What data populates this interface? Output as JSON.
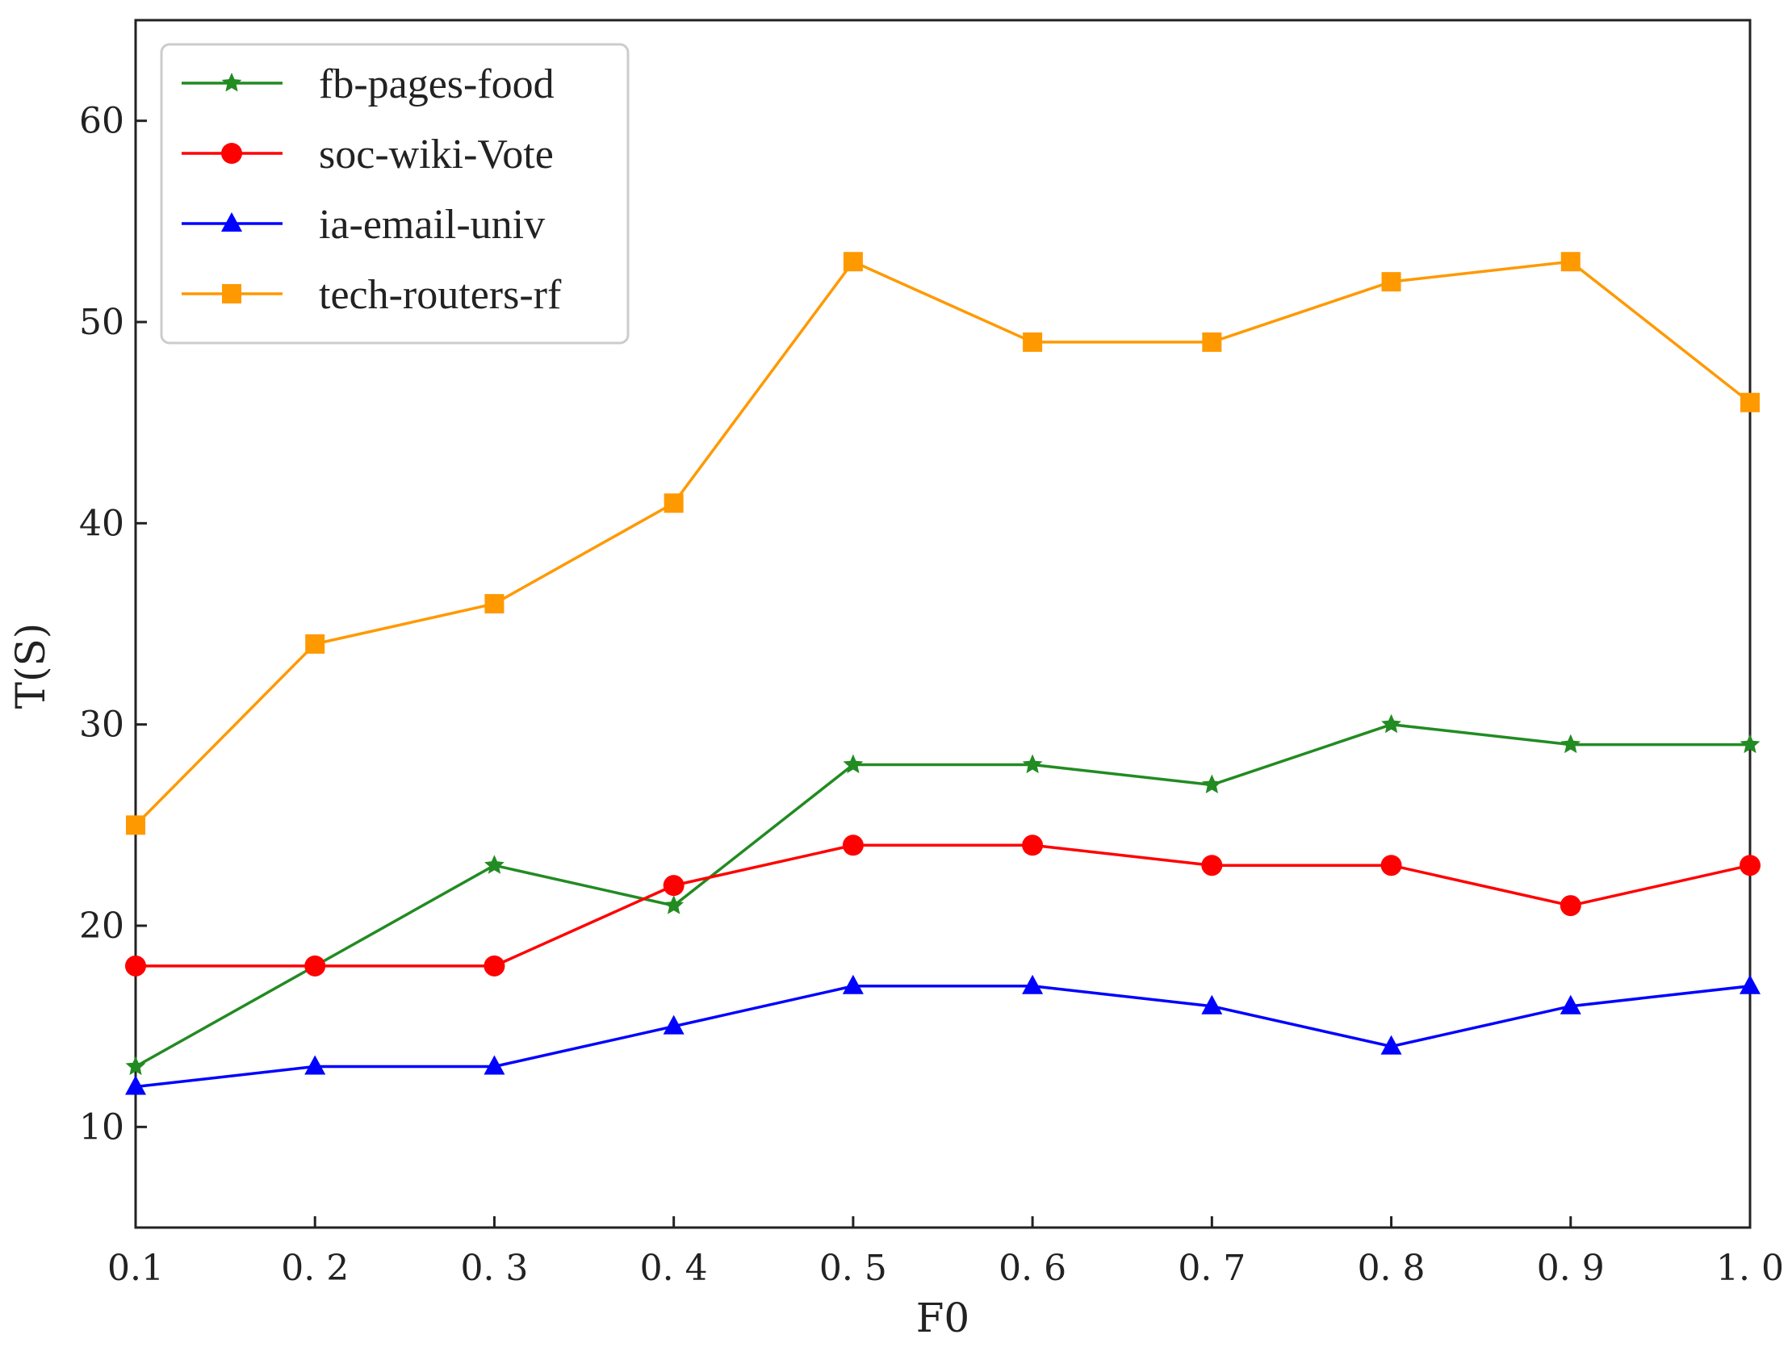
{
  "chart_data": {
    "type": "line",
    "title": "",
    "xlabel": "F0",
    "ylabel": "T(S)",
    "x": [
      0.1,
      0.2,
      0.3,
      0.4,
      0.5,
      0.6,
      0.7,
      0.8,
      0.9,
      1.0
    ],
    "x_tick_labels": [
      "0.1",
      "0. 2",
      "0. 3",
      "0. 4",
      "0. 5",
      "0. 6",
      "0. 7",
      "0. 8",
      "0. 9",
      "1. 0"
    ],
    "y_ticks": [
      10,
      20,
      30,
      40,
      50,
      60
    ],
    "y_tick_labels": [
      "10",
      "20",
      "30",
      "40",
      "50",
      "60"
    ],
    "xlim": [
      0.1,
      1.0
    ],
    "ylim": [
      5,
      65
    ],
    "grid": false,
    "legend_position": "top-left",
    "series": [
      {
        "name": "fb-pages-food",
        "color": "#228B22",
        "marker": "star",
        "values": [
          13,
          18,
          23,
          21,
          28,
          28,
          27,
          30,
          29,
          29
        ]
      },
      {
        "name": "soc-wiki-Vote",
        "color": "#FF0000",
        "marker": "circle",
        "values": [
          18,
          18,
          18,
          22,
          24,
          24,
          23,
          23,
          21,
          23
        ]
      },
      {
        "name": "ia-email-univ",
        "color": "#0000FF",
        "marker": "triangle",
        "values": [
          12,
          13,
          13,
          15,
          17,
          17,
          16,
          14,
          16,
          17
        ]
      },
      {
        "name": "tech-routers-rf",
        "color": "#FF9900",
        "marker": "square",
        "values": [
          25,
          34,
          36,
          41,
          53,
          49,
          49,
          52,
          53,
          46
        ]
      }
    ]
  }
}
